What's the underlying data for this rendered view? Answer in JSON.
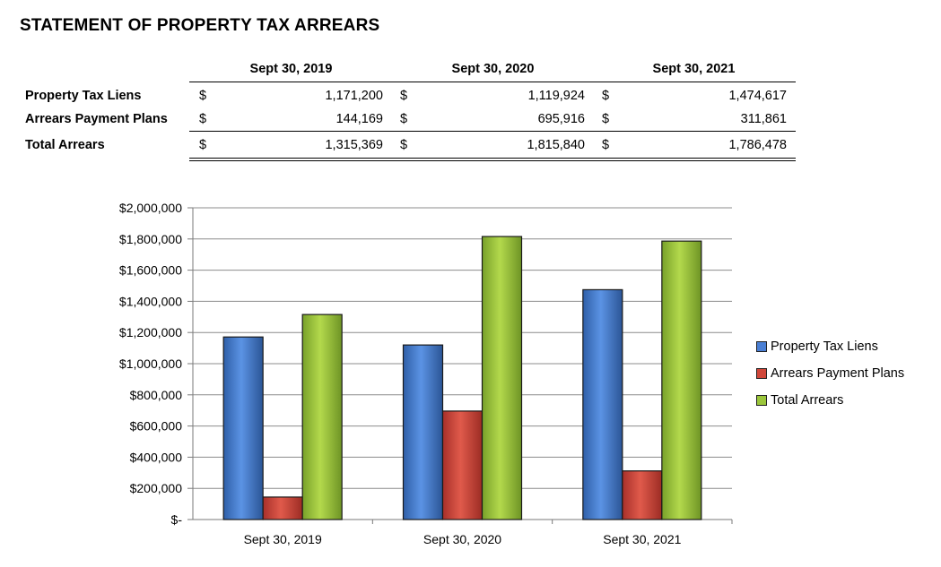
{
  "title": "STATEMENT OF PROPERTY TAX ARREARS",
  "table": {
    "columns": [
      "Sept 30, 2019",
      "Sept 30, 2020",
      "Sept 30, 2021"
    ],
    "rows": [
      {
        "label": "Property Tax Liens",
        "currency": "$",
        "values": [
          "1,171,200",
          "1,119,924",
          "1,474,617"
        ]
      },
      {
        "label": "Arrears Payment Plans",
        "currency": "$",
        "values": [
          "144,169",
          "695,916",
          "311,861"
        ]
      },
      {
        "label": "Total Arrears",
        "currency": "$",
        "values": [
          "1,315,369",
          "1,815,840",
          "1,786,478"
        ]
      }
    ]
  },
  "chart_data": {
    "type": "bar",
    "categories": [
      "Sept 30, 2019",
      "Sept 30, 2020",
      "Sept 30, 2021"
    ],
    "series": [
      {
        "name": "Property Tax Liens",
        "values": [
          1171200,
          1119924,
          1474617
        ],
        "color": "#4a7fd4"
      },
      {
        "name": "Arrears Payment Plans",
        "values": [
          144169,
          695916,
          311861
        ],
        "color": "#d0473a"
      },
      {
        "name": "Total Arrears",
        "values": [
          1315369,
          1815840,
          1786478
        ],
        "color": "#9bc63b"
      }
    ],
    "ylim": [
      0,
      2000000
    ],
    "yticks": [
      0,
      200000,
      400000,
      600000,
      800000,
      1000000,
      1200000,
      1400000,
      1600000,
      1800000,
      2000000
    ],
    "ytick_labels": [
      "$-",
      "$200,000",
      "$400,000",
      "$600,000",
      "$800,000",
      "$1,000,000",
      "$1,200,000",
      "$1,400,000",
      "$1,600,000",
      "$1,800,000",
      "$2,000,000"
    ],
    "grid": true,
    "legend_position": "right"
  }
}
